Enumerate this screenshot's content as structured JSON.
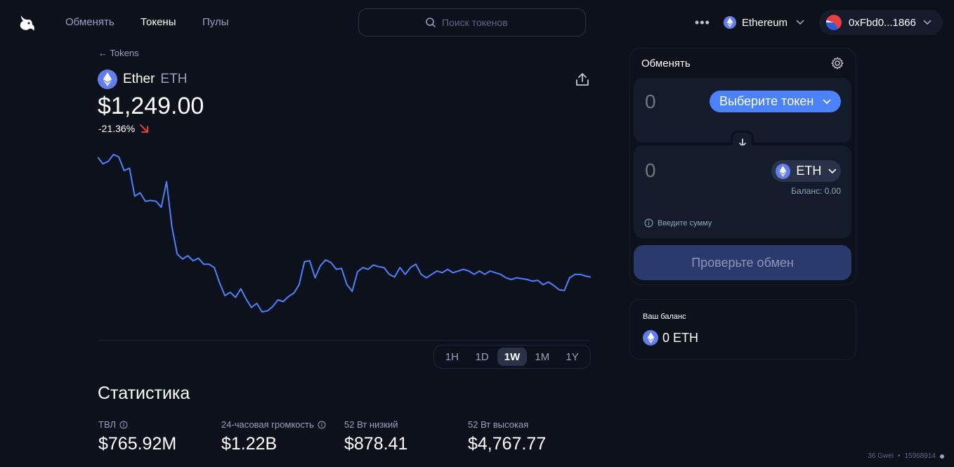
{
  "nav": {
    "links": [
      "Обменять",
      "Токены",
      "Пулы"
    ],
    "active_index": 1,
    "search_placeholder": "Поиск токенов",
    "more": "•••",
    "network": "Ethereum",
    "account": "0xFbd0...1866"
  },
  "token": {
    "back": "← Tokens",
    "name": "Ether",
    "symbol": "ETH",
    "price": "$1,249.00",
    "change": "-21.36%",
    "change_color": "#fd4040"
  },
  "chart_data": {
    "type": "line",
    "color": "#4c82fb",
    "timeframe": "1W",
    "y": [
      1378,
      1370,
      1373,
      1381,
      1378,
      1362,
      1365,
      1332,
      1336,
      1326,
      1327,
      1326,
      1319,
      1349,
      1296,
      1264,
      1258,
      1262,
      1256,
      1259,
      1252,
      1252,
      1248,
      1230,
      1215,
      1219,
      1213,
      1223,
      1211,
      1201,
      1206,
      1196,
      1197,
      1202,
      1210,
      1208,
      1214,
      1218,
      1228,
      1255,
      1256,
      1236,
      1250,
      1257,
      1254,
      1246,
      1247,
      1228,
      1220,
      1243,
      1248,
      1246,
      1251,
      1249,
      1248,
      1240,
      1237,
      1248,
      1240,
      1248,
      1252,
      1240,
      1236,
      1240,
      1244,
      1242,
      1246,
      1242,
      1244,
      1246,
      1244,
      1240,
      1244,
      1240,
      1244,
      1242,
      1240,
      1236,
      1234,
      1236,
      1235,
      1234,
      1232,
      1233,
      1228,
      1231,
      1227,
      1222,
      1221,
      1236,
      1240,
      1240,
      1238,
      1237
    ],
    "x_range": [
      "",
      ""
    ],
    "grid": false
  },
  "timeframes": [
    "1H",
    "1D",
    "1W",
    "1M",
    "1Y"
  ],
  "timeframe_active": 2,
  "stats": {
    "title": "Статистика",
    "items": [
      {
        "label": "ТВЛ",
        "value": "$765.92M",
        "info": true
      },
      {
        "label": "24-часовая громкость",
        "value": "$1.22B",
        "info": true
      },
      {
        "label": "52 Вт низкий",
        "value": "$878.41",
        "info": false
      },
      {
        "label": "52 Вт высокая",
        "value": "$4,767.77",
        "info": false
      }
    ]
  },
  "swap": {
    "title": "Обменять",
    "input_amount": "0",
    "select_token_label": "Выберите токен",
    "output_amount": "0",
    "output_token": "ETH",
    "balance": "Баланс: 0.00",
    "hint": "Введите сумму",
    "review_button": "Проверьте обмен"
  },
  "balance_card": {
    "label": "Ваш баланс",
    "value": "0 ETH"
  },
  "footer": {
    "gas": "36 Gwei",
    "block": "15968914"
  }
}
